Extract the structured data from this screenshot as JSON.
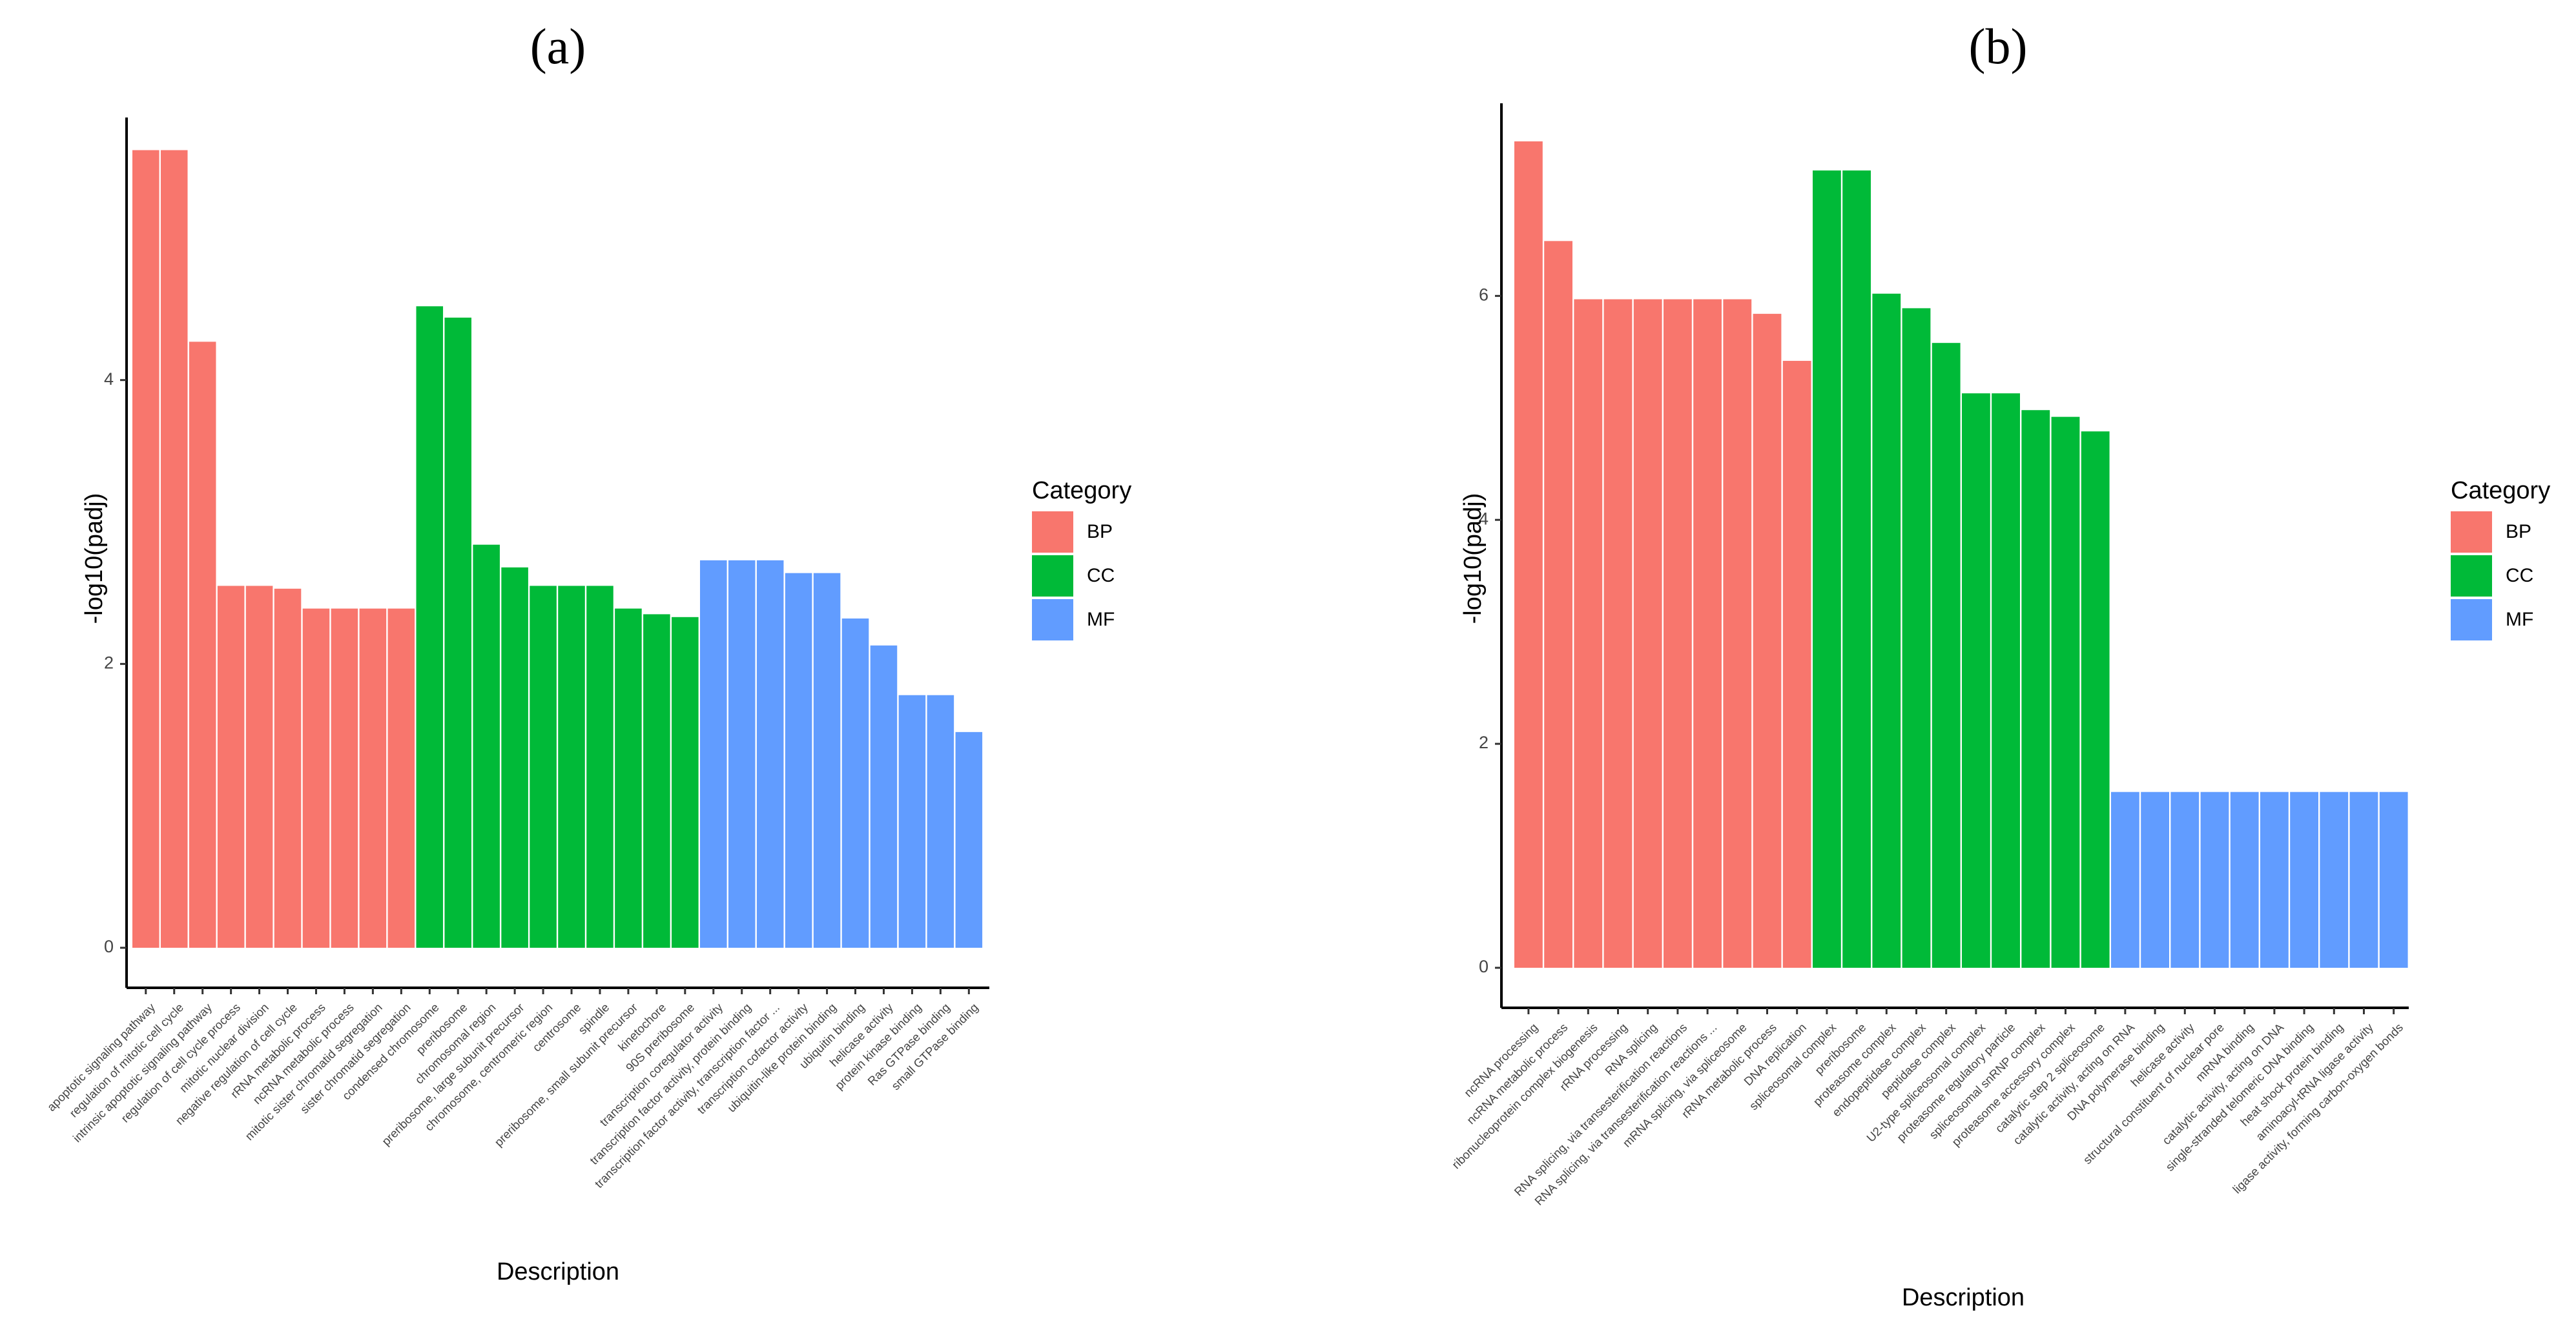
{
  "colors": {
    "BP": "#F8766D",
    "CC": "#00BA38",
    "MF": "#619CFF"
  },
  "chart_data": [
    {
      "type": "bar",
      "panel_label": "(a)",
      "xlabel": "Description",
      "ylabel": "-log10(padj)",
      "ylim": [
        0,
        5.85
      ],
      "yticks": [
        0,
        2,
        4
      ],
      "legend": {
        "title": "Category",
        "position": "right",
        "entries": [
          "BP",
          "CC",
          "MF"
        ]
      },
      "categories": [
        "apoptotic signaling pathway",
        "regulation of mitotic cell cycle",
        "intrinsic apoptotic signaling pathway",
        "regulation of cell cycle process",
        "mitotic nuclear division",
        "negative regulation of cell cycle",
        "rRNA metabolic process",
        "ncRNA metabolic process",
        "mitotic sister chromatid segregation",
        "sister chromatid segregation",
        "condensed chromosome",
        "preribosome",
        "chromosomal region",
        "preribosome, large subunit precursor",
        "chromosome, centromeric region",
        "centrosome",
        "spindle",
        "preribosome, small subunit precursor",
        "kinetochore",
        "90S preribosome",
        "transcription coregulator activity",
        "transcription factor activity, protein binding",
        "transcription factor activity, transcription factor ...",
        "transcription cofactor activity",
        "ubiquitin-like protein binding",
        "ubiquitin binding",
        "helicase activity",
        "protein kinase binding",
        "Ras GTPase binding",
        "small GTPase binding"
      ],
      "values": [
        5.62,
        5.62,
        4.27,
        2.55,
        2.55,
        2.53,
        2.39,
        2.39,
        2.39,
        2.39,
        4.52,
        4.44,
        2.84,
        2.68,
        2.55,
        2.55,
        2.55,
        2.39,
        2.35,
        2.33,
        2.73,
        2.73,
        2.73,
        2.64,
        2.64,
        2.32,
        2.13,
        1.78,
        1.78,
        1.52
      ],
      "groups": [
        "BP",
        "BP",
        "BP",
        "BP",
        "BP",
        "BP",
        "BP",
        "BP",
        "BP",
        "BP",
        "CC",
        "CC",
        "CC",
        "CC",
        "CC",
        "CC",
        "CC",
        "CC",
        "CC",
        "CC",
        "MF",
        "MF",
        "MF",
        "MF",
        "MF",
        "MF",
        "MF",
        "MF",
        "MF",
        "MF"
      ]
    },
    {
      "type": "bar",
      "panel_label": "(b)",
      "xlabel": "Description",
      "ylabel": "-log10(padj)",
      "ylim": [
        0,
        7.72
      ],
      "yticks": [
        0,
        2,
        4,
        6
      ],
      "legend": {
        "title": "Category",
        "position": "right",
        "entries": [
          "BP",
          "CC",
          "MF"
        ]
      },
      "categories": [
        "ncRNA processing",
        "ncRNA metabolic process",
        "ribonucleoprotein complex biogenesis",
        "rRNA processing",
        "RNA splicing",
        "RNA splicing, via transesterification reactions",
        "RNA splicing, via transesterification reactions ...",
        "mRNA splicing, via spliceosome",
        "rRNA metabolic process",
        "DNA replication",
        "spliceosomal complex",
        "preribosome",
        "proteasome complex",
        "endopeptidase complex",
        "peptidase complex",
        "U2-type spliceosomal complex",
        "proteasome regulatory particle",
        "spliceosomal snRNP complex",
        "proteasome accessory complex",
        "catalytic step 2 spliceosome",
        "catalytic activity, acting on RNA",
        "DNA polymerase binding",
        "helicase activity",
        "structural constituent of nuclear pore",
        "mRNA binding",
        "catalytic activity, acting on DNA",
        "single-stranded telomeric DNA binding",
        "heat shock protein binding",
        "aminoacyl-tRNA ligase activity",
        "ligase activity, forming carbon-oxygen bonds"
      ],
      "values": [
        7.38,
        6.49,
        5.97,
        5.97,
        5.97,
        5.97,
        5.97,
        5.97,
        5.84,
        5.42,
        7.12,
        7.12,
        6.02,
        5.89,
        5.58,
        5.13,
        5.13,
        4.98,
        4.92,
        4.79,
        1.57,
        1.57,
        1.57,
        1.57,
        1.57,
        1.57,
        1.57,
        1.57,
        1.57,
        1.57
      ],
      "groups": [
        "BP",
        "BP",
        "BP",
        "BP",
        "BP",
        "BP",
        "BP",
        "BP",
        "BP",
        "BP",
        "CC",
        "CC",
        "CC",
        "CC",
        "CC",
        "CC",
        "CC",
        "CC",
        "CC",
        "CC",
        "MF",
        "MF",
        "MF",
        "MF",
        "MF",
        "MF",
        "MF",
        "MF",
        "MF",
        "MF"
      ]
    }
  ]
}
